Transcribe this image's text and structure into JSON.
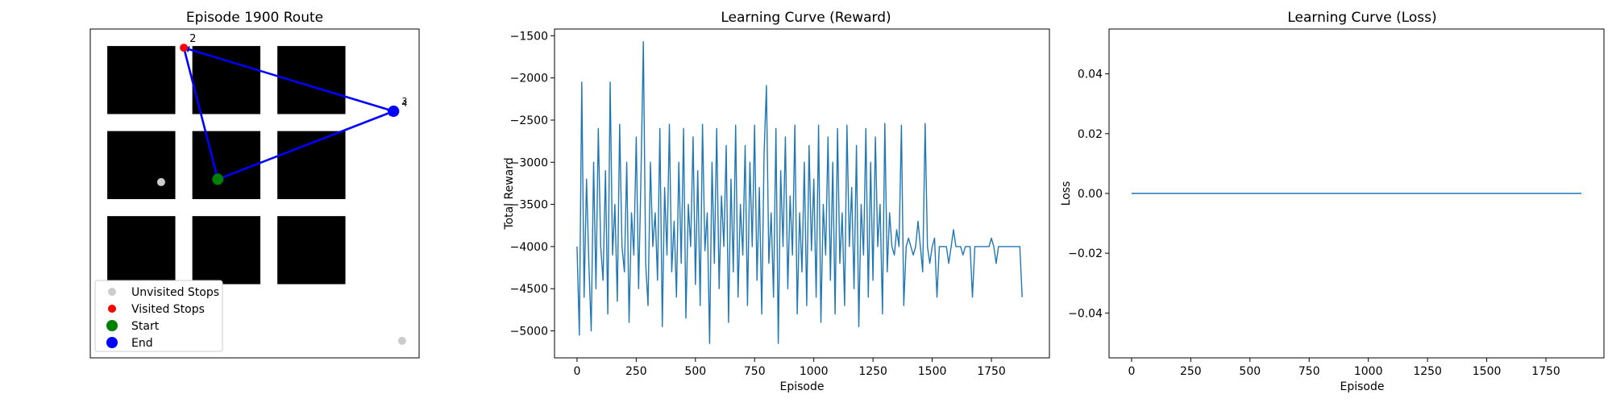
{
  "chart_data": [
    {
      "type": "scatter",
      "title": "Episode 1900 Route",
      "xlim": [
        0,
        5.8
      ],
      "ylim": [
        0,
        5.8
      ],
      "blocks": [
        {
          "x0": 0.3,
          "x1": 1.5,
          "y0": 4.3,
          "y1": 5.5
        },
        {
          "x0": 1.8,
          "x1": 3.0,
          "y0": 4.3,
          "y1": 5.5
        },
        {
          "x0": 3.3,
          "x1": 4.5,
          "y0": 4.3,
          "y1": 5.5
        },
        {
          "x0": 0.3,
          "x1": 1.5,
          "y0": 2.8,
          "y1": 4.0
        },
        {
          "x0": 1.8,
          "x1": 3.0,
          "y0": 2.8,
          "y1": 4.0
        },
        {
          "x0": 3.3,
          "x1": 4.5,
          "y0": 2.8,
          "y1": 4.0
        },
        {
          "x0": 0.3,
          "x1": 1.5,
          "y0": 1.3,
          "y1": 2.5
        },
        {
          "x0": 1.8,
          "x1": 3.0,
          "y0": 1.3,
          "y1": 2.5
        },
        {
          "x0": 3.3,
          "x1": 4.5,
          "y0": 1.3,
          "y1": 2.5
        }
      ],
      "unvisited": [
        {
          "x": 1.25,
          "y": 3.1
        },
        {
          "x": 5.5,
          "y": 0.3
        }
      ],
      "visited": [
        {
          "x": 1.65,
          "y": 5.47,
          "label": "2"
        }
      ],
      "start": {
        "x": 2.25,
        "y": 3.15
      },
      "end": {
        "x": 5.35,
        "y": 4.35,
        "labels": [
          "3",
          "4"
        ]
      },
      "route": [
        {
          "x": 2.25,
          "y": 3.15
        },
        {
          "x": 5.35,
          "y": 4.35
        },
        {
          "x": 1.65,
          "y": 5.47
        },
        {
          "x": 2.25,
          "y": 3.15
        }
      ],
      "colors": {
        "unvisited": "#cccccc",
        "visited": "#ff0000",
        "start": "#008000",
        "end": "#0000ff",
        "route": "#0000ff",
        "block": "#000000"
      },
      "legend": {
        "position": "lower-left",
        "entries": [
          {
            "label": "Unvisited Stops",
            "color": "#cccccc"
          },
          {
            "label": "Visited Stops",
            "color": "#ff0000"
          },
          {
            "label": "Start",
            "color": "#008000"
          },
          {
            "label": "End",
            "color": "#0000ff"
          }
        ]
      }
    },
    {
      "type": "line",
      "title": "Learning Curve (Reward)",
      "xlabel": "Episode",
      "ylabel": "Total Reward",
      "xlim": [
        -95,
        1995
      ],
      "ylim": [
        -5320,
        -1420
      ],
      "xticks": [
        0,
        250,
        500,
        750,
        1000,
        1250,
        1500,
        1750
      ],
      "yticks": [
        -5000,
        -4500,
        -4000,
        -3500,
        -3000,
        -2500,
        -2000,
        -1500
      ],
      "color": "#1f77b4",
      "series": [
        {
          "x_start": 0,
          "x_step": 10,
          "values": [
            -4000,
            -5050,
            -2050,
            -4600,
            -3200,
            -4200,
            -5000,
            -3000,
            -4500,
            -2600,
            -4000,
            -4400,
            -3100,
            -4800,
            -2050,
            -4100,
            -3500,
            -4650,
            -2550,
            -4000,
            -4300,
            -3000,
            -4900,
            -3600,
            -4100,
            -2700,
            -4500,
            -3200,
            -1570,
            -4200,
            -4700,
            -3000,
            -4000,
            -3600,
            -4400,
            -2600,
            -4950,
            -3300,
            -4100,
            -2550,
            -4300,
            -3700,
            -4600,
            -3000,
            -4200,
            -2600,
            -4850,
            -3500,
            -4000,
            -2700,
            -4450,
            -3100,
            -4700,
            -2550,
            -4050,
            -3600,
            -5150,
            -3000,
            -4200,
            -2600,
            -4500,
            -3400,
            -4000,
            -2800,
            -4900,
            -3200,
            -4300,
            -2560,
            -4600,
            -3500,
            -4100,
            -2800,
            -4700,
            -3000,
            -4000,
            -2560,
            -4400,
            -3300,
            -4800,
            -2900,
            -2090,
            -4200,
            -3600,
            -4600,
            -2600,
            -5150,
            -3100,
            -4000,
            -2700,
            -4500,
            -3400,
            -4100,
            -2560,
            -4800,
            -3600,
            -4300,
            -3000,
            -4700,
            -2800,
            -4050,
            -3200,
            -4600,
            -2560,
            -4900,
            -3500,
            -4100,
            -2700,
            -4400,
            -3000,
            -4800,
            -2600,
            -4200,
            -3600,
            -4700,
            -2560,
            -4000,
            -3300,
            -4500,
            -2800,
            -4950,
            -3500,
            -4100,
            -2600,
            -4600,
            -3000,
            -4400,
            -2700,
            -4000,
            -3500,
            -4800,
            -2540,
            -4300,
            -3600,
            -4000,
            -4100,
            -3800,
            -4000,
            -2560,
            -4700,
            -4000,
            -3900,
            -4000,
            -4100,
            -4000,
            -3700,
            -4000,
            -4300,
            -2540,
            -4000,
            -4200,
            -4000,
            -3900,
            -4600,
            -4000,
            -4000,
            -4000,
            -4000,
            -4200,
            -4000,
            -3800,
            -4000,
            -4000,
            -4000,
            -4100,
            -4000,
            -4000,
            -4000,
            -4600,
            -4000,
            -4000,
            -4000,
            -4000,
            -4000,
            -4000,
            -4000,
            -3900,
            -4000,
            -4200,
            -4000,
            -4000,
            -4000,
            -4000,
            -4000,
            -4000,
            -4000,
            -4000,
            -4000,
            -4000,
            -4600
          ]
        }
      ]
    },
    {
      "type": "line",
      "title": "Learning Curve (Loss)",
      "xlabel": "Episode",
      "ylabel": "Loss",
      "xlim": [
        -95,
        1995
      ],
      "ylim": [
        -0.055,
        0.055
      ],
      "xticks": [
        0,
        250,
        500,
        750,
        1000,
        1250,
        1500,
        1750
      ],
      "yticks": [
        -0.04,
        -0.02,
        0.0,
        0.02,
        0.04
      ],
      "ytick_labels": [
        "−0.04",
        "−0.02",
        "0.00",
        "0.02",
        "0.04"
      ],
      "color": "#1f77b4",
      "series": [
        {
          "x": [
            0,
            1900
          ],
          "values": [
            0,
            0
          ]
        }
      ]
    }
  ]
}
